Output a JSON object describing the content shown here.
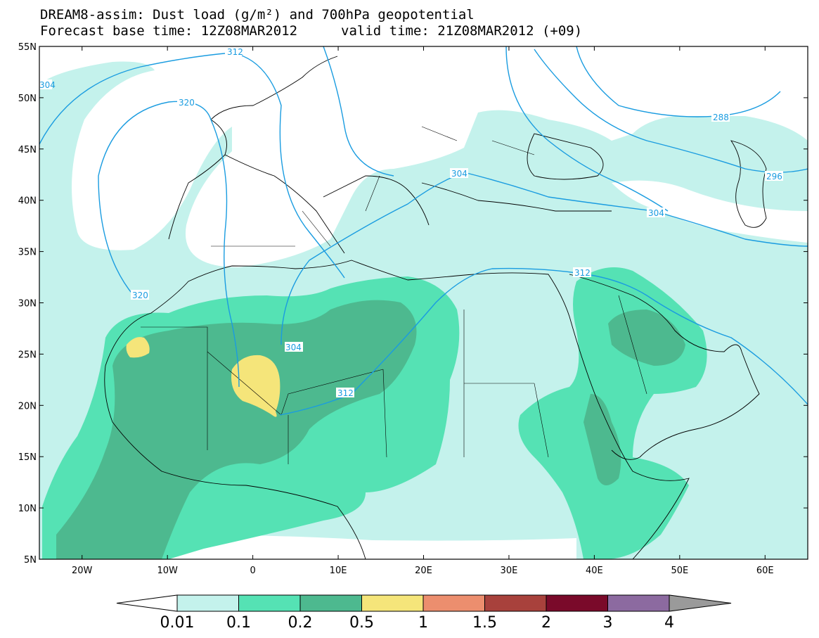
{
  "title": {
    "line1": "DREAM8-assim: Dust load (g/m²) and 700hPa geopotential",
    "forecast_base": "Forecast base time: 12Z08MAR2012",
    "valid_time": "valid time: 21Z08MAR2012 (+09)"
  },
  "map": {
    "lon_range": [
      -25,
      65
    ],
    "lat_range": [
      5,
      55
    ],
    "lat_ticks": [
      "5N",
      "10N",
      "15N",
      "20N",
      "25N",
      "30N",
      "35N",
      "40N",
      "45N",
      "50N",
      "55N"
    ],
    "lon_ticks": [
      "20W",
      "10W",
      "0",
      "10E",
      "20E",
      "30E",
      "40E",
      "50E",
      "60E"
    ],
    "contour_color": "#1a9ce0",
    "contour_labels": [
      "312",
      "304",
      "320",
      "320",
      "288",
      "296",
      "304",
      "304",
      "312",
      "304",
      "312"
    ]
  },
  "colorbar": {
    "colors": [
      "#c4f2ec",
      "#55e2b4",
      "#4db98f",
      "#f5e57a",
      "#ec8e6e",
      "#a8413c",
      "#7a0a2a",
      "#8c6aa0"
    ],
    "low_color": "#ffffff",
    "high_color": "#9a9a9a",
    "labels": [
      "0.01",
      "0.1",
      "0.2",
      "0.5",
      "1",
      "1.5",
      "2",
      "3",
      "4"
    ]
  }
}
